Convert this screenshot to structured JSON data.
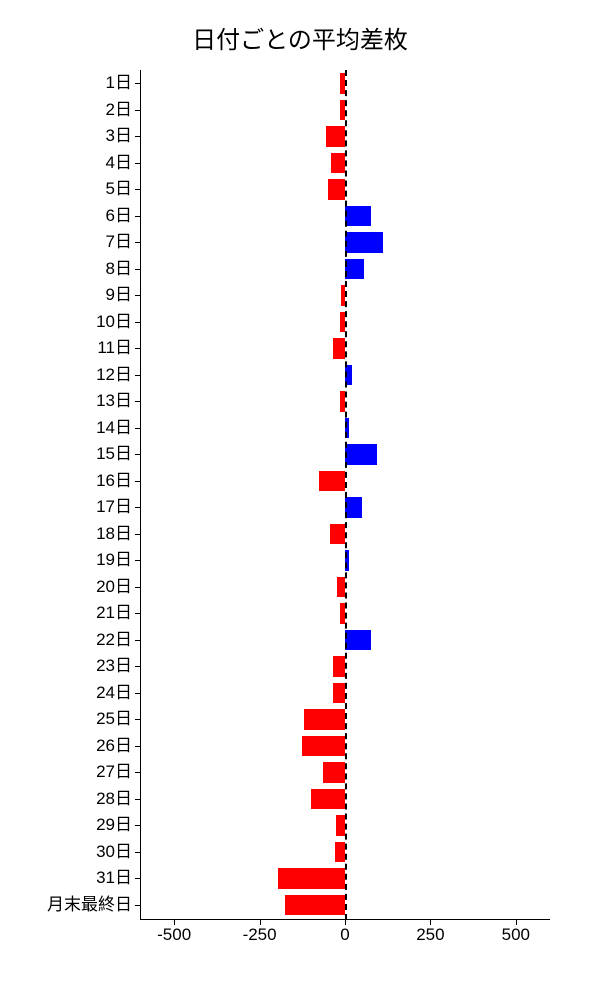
{
  "chart": {
    "type": "bar-horizontal",
    "title": "日付ごとの平均差枚",
    "title_fontsize": 24,
    "background_color": "#ffffff",
    "axis_color": "#000000",
    "label_color": "#000000",
    "label_fontsize": 17,
    "xlim": [
      -600,
      600
    ],
    "xtick_values": [
      -500,
      -250,
      0,
      250,
      500
    ],
    "xtick_labels": [
      "-500",
      "-250",
      "0",
      "250",
      "500"
    ],
    "zero_line_dashed": true,
    "bar_height_ratio": 0.77,
    "positive_color": "#0000ff",
    "negative_color": "#ff0000",
    "categories": [
      "1日",
      "2日",
      "3日",
      "4日",
      "5日",
      "6日",
      "7日",
      "8日",
      "9日",
      "10日",
      "11日",
      "12日",
      "13日",
      "14日",
      "15日",
      "16日",
      "17日",
      "18日",
      "19日",
      "20日",
      "21日",
      "22日",
      "23日",
      "24日",
      "25日",
      "26日",
      "27日",
      "28日",
      "29日",
      "30日",
      "31日",
      "月末最終日"
    ],
    "values": [
      -15,
      -15,
      -55,
      -40,
      -50,
      75,
      110,
      55,
      -12,
      -15,
      -35,
      20,
      -15,
      12,
      95,
      -75,
      50,
      -45,
      12,
      -22,
      -15,
      75,
      -35,
      -35,
      -120,
      -125,
      -65,
      -100,
      -25,
      -30,
      -195,
      -175
    ]
  }
}
